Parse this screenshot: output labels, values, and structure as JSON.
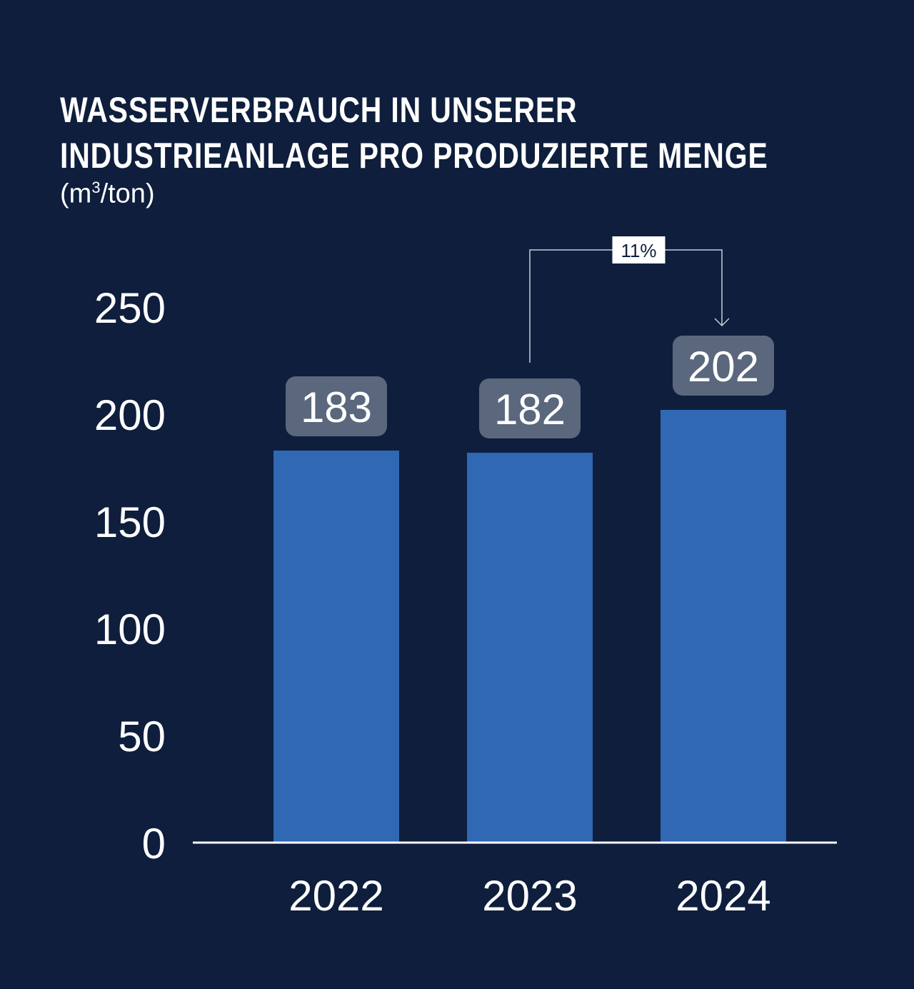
{
  "chart_data": {
    "type": "bar",
    "title_line1": "WASSERVERBRAUCH IN UNSERER",
    "title_line2": "INDUSTRIEANLAGE PRO PRODUZIERTE MENGE",
    "unit_prefix": "(m",
    "unit_sup": "3",
    "unit_suffix": "/ton)",
    "categories": [
      "2022",
      "2023",
      "2024"
    ],
    "values": [
      183,
      182,
      202
    ],
    "data_labels": [
      "183",
      "182",
      "202"
    ],
    "ylim": [
      0,
      250
    ],
    "yticks": [
      0,
      50,
      100,
      150,
      200,
      250
    ],
    "grid": false,
    "annotation": {
      "text": "11%",
      "from": "2023",
      "to": "2024"
    },
    "colors": {
      "background": "#0e1e3c",
      "bar": "#3068b3",
      "label_box": "#5a677d",
      "annotation_box": "#ffffff"
    }
  }
}
